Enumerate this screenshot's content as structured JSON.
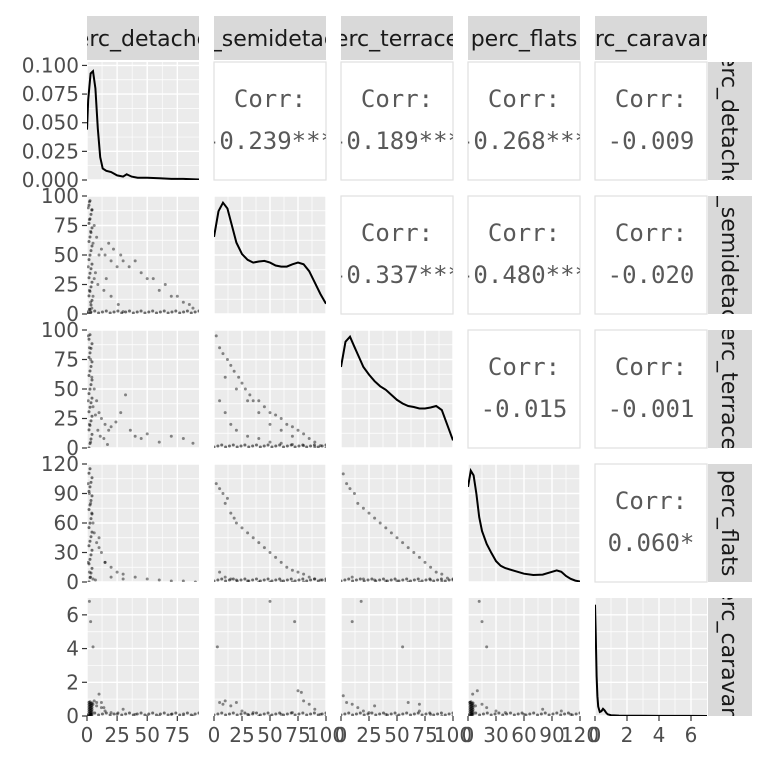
{
  "chart_data": {
    "type": "scatter-matrix",
    "title": "",
    "variables": [
      {
        "name": "perc_detached",
        "strip_label": "perc_detached",
        "range": [
          0,
          93
        ],
        "ticks": [
          {
            "v": 0,
            "label": "0"
          },
          {
            "v": 25,
            "label": "25"
          },
          {
            "v": 50,
            "label": "50"
          },
          {
            "v": 75,
            "label": "75"
          }
        ]
      },
      {
        "name": "perc_semidetached",
        "strip_label": "perc_semidetached",
        "range": [
          0,
          100
        ],
        "ticks": [
          {
            "v": 0,
            "label": "0"
          },
          {
            "v": 25,
            "label": "25"
          },
          {
            "v": 50,
            "label": "50"
          },
          {
            "v": 75,
            "label": "75"
          },
          {
            "v": 100,
            "label": "100"
          }
        ]
      },
      {
        "name": "perc_terraced",
        "strip_label": "perc_terraced",
        "range": [
          0,
          100
        ],
        "ticks": [
          {
            "v": 0,
            "label": "0"
          },
          {
            "v": 25,
            "label": "25"
          },
          {
            "v": 50,
            "label": "50"
          },
          {
            "v": 75,
            "label": "75"
          },
          {
            "v": 100,
            "label": "100"
          }
        ]
      },
      {
        "name": "perc_flats",
        "strip_label": "perc_flats",
        "range": [
          0,
          120
        ],
        "ticks": [
          {
            "v": 0,
            "label": "0"
          },
          {
            "v": 30,
            "label": "30"
          },
          {
            "v": 60,
            "label": "60"
          },
          {
            "v": 90,
            "label": "90"
          },
          {
            "v": 120,
            "label": "120"
          }
        ]
      },
      {
        "name": "perc_caravan",
        "strip_label": "perc_caravan_t",
        "range": [
          0,
          7
        ],
        "ticks": [
          {
            "v": 0,
            "label": "0"
          },
          {
            "v": 2,
            "label": "2"
          },
          {
            "v": 4,
            "label": "4"
          },
          {
            "v": 6,
            "label": "6"
          }
        ]
      }
    ],
    "density_ticks": [
      {
        "v": 0,
        "label": "0.000"
      },
      {
        "v": 0.025,
        "label": "0.025"
      },
      {
        "v": 0.05,
        "label": "0.050"
      },
      {
        "v": 0.075,
        "label": "0.075"
      },
      {
        "v": 0.1,
        "label": "0.100"
      }
    ],
    "density_ylim": [
      0,
      0.103
    ],
    "correlations": [
      {
        "row": 0,
        "col": 1,
        "label": "Corr:",
        "value": "-0.239***"
      },
      {
        "row": 0,
        "col": 2,
        "label": "Corr:",
        "value": "-0.189***"
      },
      {
        "row": 0,
        "col": 3,
        "label": "Corr:",
        "value": "-0.268***"
      },
      {
        "row": 0,
        "col": 4,
        "label": "Corr:",
        "value": "-0.009"
      },
      {
        "row": 1,
        "col": 2,
        "label": "Corr:",
        "value": "-0.337***"
      },
      {
        "row": 1,
        "col": 3,
        "label": "Corr:",
        "value": "-0.480***"
      },
      {
        "row": 1,
        "col": 4,
        "label": "Corr:",
        "value": "-0.020"
      },
      {
        "row": 2,
        "col": 3,
        "label": "Corr:",
        "value": "-0.015"
      },
      {
        "row": 2,
        "col": 4,
        "label": "Corr:",
        "value": "-0.001"
      },
      {
        "row": 3,
        "col": 4,
        "label": "Corr:",
        "value": "0.060*"
      }
    ],
    "densities": [
      {
        "var": 0,
        "x": [
          0,
          1,
          3,
          5,
          7,
          9,
          11,
          13,
          16,
          20,
          25,
          30,
          33,
          37,
          42,
          50,
          60,
          70,
          80,
          90,
          93
        ],
        "y": [
          0.044,
          0.07,
          0.093,
          0.095,
          0.08,
          0.045,
          0.02,
          0.01,
          0.008,
          0.007,
          0.004,
          0.003,
          0.005,
          0.003,
          0.002,
          0.002,
          0.0015,
          0.001,
          0.001,
          0.0005,
          0.0004
        ]
      },
      {
        "var": 1,
        "x": [
          0,
          4,
          8,
          12,
          16,
          20,
          25,
          30,
          35,
          40,
          45,
          50,
          55,
          60,
          65,
          70,
          75,
          80,
          85,
          90,
          95,
          100
        ],
        "y": [
          0.0135,
          0.018,
          0.0195,
          0.0185,
          0.0155,
          0.0125,
          0.0105,
          0.0095,
          0.009,
          0.0092,
          0.0093,
          0.009,
          0.0085,
          0.0083,
          0.0083,
          0.0087,
          0.009,
          0.0087,
          0.0075,
          0.0055,
          0.0035,
          0.0018
        ]
      },
      {
        "var": 2,
        "x": [
          0,
          4,
          8,
          12,
          16,
          20,
          25,
          30,
          35,
          40,
          45,
          50,
          55,
          60,
          65,
          70,
          75,
          80,
          85,
          90,
          95,
          100
        ],
        "y": [
          0.016,
          0.021,
          0.022,
          0.02,
          0.018,
          0.016,
          0.0145,
          0.0132,
          0.0122,
          0.0115,
          0.0105,
          0.0095,
          0.0088,
          0.0083,
          0.0081,
          0.0078,
          0.0078,
          0.008,
          0.0083,
          0.0075,
          0.0045,
          0.0015
        ]
      },
      {
        "var": 3,
        "x": [
          0,
          3,
          6,
          9,
          12,
          15,
          20,
          25,
          30,
          35,
          40,
          50,
          60,
          70,
          80,
          90,
          95,
          100,
          105,
          110,
          115,
          120
        ],
        "y": [
          0.0205,
          0.024,
          0.023,
          0.019,
          0.014,
          0.011,
          0.0082,
          0.0063,
          0.0045,
          0.0035,
          0.003,
          0.0024,
          0.0018,
          0.0015,
          0.0016,
          0.0022,
          0.0025,
          0.0022,
          0.0013,
          0.0007,
          0.0003,
          0.0001
        ]
      },
      {
        "var": 4,
        "x": [
          0,
          0.05,
          0.1,
          0.15,
          0.2,
          0.3,
          0.4,
          0.5,
          0.6,
          0.7,
          0.8,
          1,
          1.5,
          2,
          3,
          4,
          5,
          6,
          7
        ],
        "y": [
          14,
          10,
          5,
          2.5,
          1.2,
          0.5,
          0.6,
          0.9,
          0.7,
          0.4,
          0.2,
          0.1,
          0.05,
          0.03,
          0.02,
          0.01,
          0.01,
          0.01,
          0.005
        ]
      }
    ],
    "scatter": [
      {
        "row": 1,
        "col": 0,
        "x": [
          1,
          2,
          3,
          5,
          8,
          12,
          15,
          18,
          20,
          22,
          25,
          28,
          30,
          35,
          40,
          45,
          50,
          55,
          60,
          65,
          70,
          75,
          80,
          85,
          88,
          1,
          2,
          3,
          4,
          6,
          9,
          14,
          20,
          26,
          30,
          1,
          2,
          3,
          5,
          7,
          2,
          4,
          6,
          10,
          16
        ],
        "y": [
          90,
          80,
          70,
          60,
          65,
          55,
          50,
          60,
          45,
          55,
          40,
          50,
          45,
          40,
          45,
          35,
          30,
          30,
          20,
          25,
          15,
          15,
          10,
          8,
          5,
          40,
          20,
          10,
          5,
          30,
          25,
          20,
          15,
          8,
          2,
          2,
          4,
          1,
          15,
          35,
          95,
          88,
          75,
          50,
          30
        ]
      },
      {
        "row": 2,
        "col": 0,
        "x": [
          1,
          2,
          3,
          4,
          6,
          8,
          10,
          12,
          15,
          18,
          20,
          24,
          28,
          32,
          36,
          40,
          45,
          50,
          60,
          70,
          80,
          88,
          1,
          2,
          3,
          5,
          7,
          9,
          11,
          14,
          17
        ],
        "y": [
          95,
          85,
          75,
          60,
          50,
          40,
          30,
          25,
          20,
          15,
          18,
          22,
          30,
          45,
          15,
          10,
          8,
          12,
          5,
          10,
          8,
          4,
          40,
          20,
          5,
          35,
          28,
          15,
          10,
          8,
          3
        ]
      },
      {
        "row": 2,
        "col": 1,
        "x": [
          2,
          5,
          8,
          12,
          15,
          18,
          22,
          25,
          28,
          32,
          35,
          40,
          45,
          50,
          55,
          60,
          65,
          70,
          75,
          80,
          85,
          90,
          95,
          5,
          10,
          15,
          20,
          30,
          40,
          50,
          60,
          70,
          80,
          90,
          100,
          10,
          20,
          30,
          40,
          50,
          60,
          70
        ],
        "y": [
          95,
          85,
          80,
          75,
          70,
          65,
          60,
          55,
          50,
          45,
          40,
          40,
          35,
          30,
          28,
          25,
          20,
          18,
          15,
          12,
          8,
          5,
          2,
          40,
          30,
          20,
          15,
          10,
          8,
          5,
          4,
          3,
          2,
          1,
          0,
          60,
          50,
          40,
          30,
          20,
          15,
          10
        ]
      },
      {
        "row": 3,
        "col": 0,
        "x": [
          1,
          2,
          3,
          4,
          5,
          6,
          8,
          10,
          12,
          15,
          20,
          25,
          30,
          40,
          50,
          60,
          70,
          80,
          90,
          1,
          2,
          3,
          5,
          7,
          10,
          15,
          20,
          30
        ],
        "y": [
          100,
          90,
          80,
          70,
          60,
          50,
          40,
          45,
          30,
          20,
          15,
          10,
          8,
          5,
          3,
          2,
          1,
          1,
          0,
          20,
          10,
          5,
          3,
          2,
          35,
          20,
          5,
          3
        ]
      },
      {
        "row": 3,
        "col": 1,
        "x": [
          2,
          5,
          8,
          10,
          12,
          15,
          18,
          20,
          25,
          30,
          35,
          40,
          45,
          50,
          55,
          60,
          65,
          70,
          75,
          80,
          85,
          90,
          95,
          100,
          5,
          10,
          15,
          20,
          30,
          40,
          50,
          60,
          70,
          80
        ],
        "y": [
          100,
          95,
          90,
          80,
          85,
          70,
          65,
          60,
          55,
          50,
          45,
          40,
          35,
          30,
          25,
          20,
          15,
          12,
          10,
          8,
          5,
          3,
          2,
          1,
          10,
          5,
          3,
          2,
          1,
          0,
          0,
          1,
          0,
          0
        ]
      },
      {
        "row": 3,
        "col": 2,
        "x": [
          2,
          5,
          8,
          12,
          15,
          20,
          25,
          30,
          35,
          40,
          45,
          50,
          55,
          60,
          65,
          70,
          75,
          80,
          85,
          90,
          95,
          100,
          10,
          20,
          30,
          40,
          50,
          60,
          70,
          80,
          90
        ],
        "y": [
          110,
          100,
          95,
          90,
          80,
          75,
          70,
          65,
          60,
          55,
          50,
          45,
          40,
          35,
          30,
          25,
          20,
          15,
          10,
          8,
          4,
          2,
          5,
          3,
          2,
          1,
          1,
          0,
          0,
          2,
          1
        ]
      },
      {
        "row": 4,
        "col": 0,
        "x": [
          2,
          3,
          5,
          8,
          12,
          15,
          20,
          25,
          30,
          40,
          50,
          60,
          70,
          80,
          88,
          1,
          2,
          3,
          4,
          5,
          6,
          8,
          10,
          12,
          14
        ],
        "y": [
          6.8,
          5.6,
          4.1,
          0.8,
          0.5,
          0.3,
          0.2,
          0.1,
          0.4,
          0.1,
          0,
          0,
          0.1,
          0,
          0,
          0,
          0,
          0.1,
          0,
          0.7,
          0.9,
          0.6,
          1.3,
          0.8,
          0.5
        ]
      },
      {
        "row": 4,
        "col": 1,
        "x": [
          3,
          5,
          8,
          10,
          15,
          20,
          25,
          30,
          35,
          40,
          50,
          60,
          70,
          75,
          80,
          85,
          90,
          95,
          100,
          50,
          72,
          78
        ],
        "y": [
          4.1,
          0.8,
          0.7,
          0.9,
          0.6,
          0.8,
          0.3,
          0.1,
          0.2,
          0,
          0,
          0.1,
          0.2,
          1.5,
          0.9,
          0.7,
          0.4,
          0.1,
          0,
          6.8,
          5.6,
          1.4
        ]
      },
      {
        "row": 4,
        "col": 2,
        "x": [
          2,
          5,
          10,
          15,
          20,
          25,
          30,
          40,
          50,
          60,
          70,
          80,
          90,
          100,
          10,
          18,
          55,
          70
        ],
        "y": [
          1.2,
          0.8,
          0.7,
          0.5,
          0.3,
          0.2,
          0.6,
          0.1,
          0,
          0.8,
          0.3,
          0.1,
          0,
          0,
          5.6,
          6.8,
          4.1,
          0.7
        ]
      },
      {
        "row": 4,
        "col": 3,
        "x": [
          2,
          5,
          8,
          10,
          15,
          20,
          30,
          40,
          60,
          80,
          100,
          110,
          12,
          15,
          20
        ],
        "y": [
          0.8,
          1.3,
          0.6,
          1.5,
          0.7,
          0.5,
          0.3,
          0.2,
          0.1,
          0.4,
          0.3,
          0.1,
          6.8,
          5.6,
          4.1
        ]
      }
    ],
    "zero_band": [
      {
        "row": 1,
        "col": 0,
        "axis": "x"
      },
      {
        "row": 2,
        "col": 0,
        "axis": "x"
      },
      {
        "row": 3,
        "col": 0,
        "axis": "x"
      },
      {
        "row": 4,
        "col": 0,
        "axis": "both"
      },
      {
        "row": 4,
        "col": 1,
        "axis": "y"
      },
      {
        "row": 4,
        "col": 2,
        "axis": "y"
      },
      {
        "row": 4,
        "col": 3,
        "axis": "both"
      },
      {
        "row": 3,
        "col": 1,
        "axis": "y"
      },
      {
        "row": 3,
        "col": 2,
        "axis": "y"
      },
      {
        "row": 2,
        "col": 1,
        "axis": "y"
      },
      {
        "row": 1,
        "col": 0,
        "axis": "y"
      }
    ],
    "colors": {
      "panel_bg": "#ebebeb",
      "grid": "#ffffff",
      "strip_bg": "#d9d9d9",
      "points": "#000000",
      "line": "#000000",
      "corr_text": "#595959"
    }
  }
}
